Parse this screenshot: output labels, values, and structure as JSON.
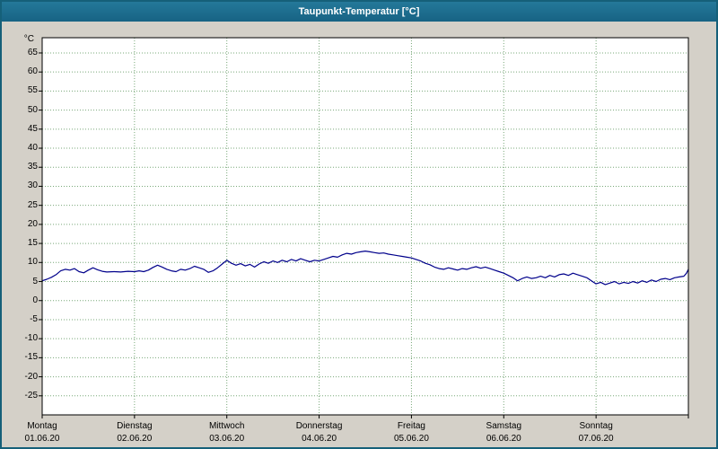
{
  "window": {
    "title": "Taupunkt-Temperatur [°C]"
  },
  "colors": {
    "titlebar": "#1a6c8b",
    "window_bg": "#d4d0c8",
    "plot_bg": "#ffffff",
    "plot_border": "#000000",
    "grid": "#79a879",
    "line": "#00008b",
    "tick": "#000000"
  },
  "chart_data": {
    "type": "line",
    "title": "Taupunkt-Temperatur [°C]",
    "ylabel_unit": "°C",
    "ylim": [
      -30,
      69
    ],
    "yticks": [
      65,
      60,
      55,
      50,
      45,
      40,
      35,
      30,
      25,
      20,
      15,
      10,
      5,
      0,
      -5,
      -10,
      -15,
      -20,
      -25
    ],
    "xlim": [
      0,
      7
    ],
    "grid": "dotted",
    "legend": "none",
    "x_days": [
      {
        "day": "Montag",
        "date": "01.06.20",
        "x": 0
      },
      {
        "day": "Dienstag",
        "date": "02.06.20",
        "x": 1
      },
      {
        "day": "Mittwoch",
        "date": "03.06.20",
        "x": 2
      },
      {
        "day": "Donnerstag",
        "date": "04.06.20",
        "x": 3
      },
      {
        "day": "Freitag",
        "date": "05.06.20",
        "x": 4
      },
      {
        "day": "Samstag",
        "date": "06.06.20",
        "x": 5
      },
      {
        "day": "Sonntag",
        "date": "07.06.20",
        "x": 6
      }
    ],
    "day_boundaries": [
      0,
      1,
      2,
      3,
      4,
      5,
      6,
      7
    ],
    "series": [
      {
        "name": "Taupunkt-Temperatur",
        "color": "#00008b",
        "points": [
          [
            0.0,
            5.2
          ],
          [
            0.05,
            5.6
          ],
          [
            0.1,
            6.1
          ],
          [
            0.15,
            6.8
          ],
          [
            0.2,
            7.8
          ],
          [
            0.25,
            8.2
          ],
          [
            0.3,
            8.0
          ],
          [
            0.35,
            8.4
          ],
          [
            0.4,
            7.6
          ],
          [
            0.45,
            7.3
          ],
          [
            0.5,
            8.0
          ],
          [
            0.55,
            8.6
          ],
          [
            0.6,
            8.1
          ],
          [
            0.65,
            7.7
          ],
          [
            0.7,
            7.5
          ],
          [
            0.78,
            7.6
          ],
          [
            0.85,
            7.5
          ],
          [
            0.93,
            7.7
          ],
          [
            1.0,
            7.6
          ],
          [
            1.05,
            7.8
          ],
          [
            1.1,
            7.6
          ],
          [
            1.15,
            8.0
          ],
          [
            1.2,
            8.7
          ],
          [
            1.25,
            9.3
          ],
          [
            1.3,
            8.8
          ],
          [
            1.35,
            8.2
          ],
          [
            1.4,
            7.8
          ],
          [
            1.45,
            7.6
          ],
          [
            1.5,
            8.2
          ],
          [
            1.55,
            8.0
          ],
          [
            1.6,
            8.4
          ],
          [
            1.65,
            9.0
          ],
          [
            1.7,
            8.6
          ],
          [
            1.75,
            8.2
          ],
          [
            1.8,
            7.4
          ],
          [
            1.85,
            7.8
          ],
          [
            1.9,
            8.6
          ],
          [
            1.95,
            9.6
          ],
          [
            2.0,
            10.6
          ],
          [
            2.05,
            9.8
          ],
          [
            2.1,
            9.3
          ],
          [
            2.15,
            9.7
          ],
          [
            2.2,
            9.1
          ],
          [
            2.25,
            9.5
          ],
          [
            2.3,
            8.8
          ],
          [
            2.35,
            9.6
          ],
          [
            2.4,
            10.2
          ],
          [
            2.45,
            9.8
          ],
          [
            2.5,
            10.4
          ],
          [
            2.55,
            10.0
          ],
          [
            2.6,
            10.6
          ],
          [
            2.65,
            10.2
          ],
          [
            2.7,
            10.8
          ],
          [
            2.75,
            10.4
          ],
          [
            2.8,
            11.0
          ],
          [
            2.85,
            10.6
          ],
          [
            2.9,
            10.2
          ],
          [
            2.95,
            10.6
          ],
          [
            3.0,
            10.4
          ],
          [
            3.05,
            10.8
          ],
          [
            3.1,
            11.2
          ],
          [
            3.15,
            11.6
          ],
          [
            3.2,
            11.4
          ],
          [
            3.25,
            12.0
          ],
          [
            3.3,
            12.4
          ],
          [
            3.35,
            12.2
          ],
          [
            3.4,
            12.6
          ],
          [
            3.45,
            12.8
          ],
          [
            3.5,
            13.0
          ],
          [
            3.55,
            12.8
          ],
          [
            3.6,
            12.6
          ],
          [
            3.65,
            12.4
          ],
          [
            3.7,
            12.5
          ],
          [
            3.75,
            12.2
          ],
          [
            3.8,
            12.0
          ],
          [
            3.85,
            11.8
          ],
          [
            3.9,
            11.6
          ],
          [
            3.95,
            11.4
          ],
          [
            4.0,
            11.2
          ],
          [
            4.05,
            10.8
          ],
          [
            4.1,
            10.4
          ],
          [
            4.15,
            9.8
          ],
          [
            4.2,
            9.4
          ],
          [
            4.25,
            8.8
          ],
          [
            4.3,
            8.4
          ],
          [
            4.35,
            8.2
          ],
          [
            4.4,
            8.6
          ],
          [
            4.45,
            8.3
          ],
          [
            4.5,
            8.0
          ],
          [
            4.55,
            8.4
          ],
          [
            4.6,
            8.2
          ],
          [
            4.65,
            8.6
          ],
          [
            4.7,
            8.9
          ],
          [
            4.75,
            8.5
          ],
          [
            4.8,
            8.8
          ],
          [
            4.85,
            8.4
          ],
          [
            4.9,
            8.0
          ],
          [
            4.95,
            7.6
          ],
          [
            5.0,
            7.2
          ],
          [
            5.05,
            6.6
          ],
          [
            5.1,
            6.0
          ],
          [
            5.15,
            5.2
          ],
          [
            5.2,
            5.8
          ],
          [
            5.25,
            6.2
          ],
          [
            5.3,
            5.8
          ],
          [
            5.35,
            6.0
          ],
          [
            5.4,
            6.4
          ],
          [
            5.45,
            6.0
          ],
          [
            5.5,
            6.6
          ],
          [
            5.55,
            6.2
          ],
          [
            5.6,
            6.8
          ],
          [
            5.65,
            7.0
          ],
          [
            5.7,
            6.6
          ],
          [
            5.75,
            7.2
          ],
          [
            5.8,
            6.8
          ],
          [
            5.85,
            6.4
          ],
          [
            5.9,
            6.0
          ],
          [
            5.95,
            5.2
          ],
          [
            6.0,
            4.4
          ],
          [
            6.05,
            4.8
          ],
          [
            6.1,
            4.2
          ],
          [
            6.15,
            4.6
          ],
          [
            6.2,
            5.0
          ],
          [
            6.25,
            4.4
          ],
          [
            6.3,
            4.8
          ],
          [
            6.35,
            4.5
          ],
          [
            6.4,
            5.0
          ],
          [
            6.45,
            4.6
          ],
          [
            6.5,
            5.2
          ],
          [
            6.55,
            4.8
          ],
          [
            6.6,
            5.4
          ],
          [
            6.65,
            5.0
          ],
          [
            6.7,
            5.6
          ],
          [
            6.75,
            5.8
          ],
          [
            6.8,
            5.5
          ],
          [
            6.85,
            6.0
          ],
          [
            6.9,
            6.2
          ],
          [
            6.95,
            6.4
          ],
          [
            6.98,
            7.2
          ],
          [
            7.0,
            8.2
          ]
        ]
      }
    ]
  }
}
